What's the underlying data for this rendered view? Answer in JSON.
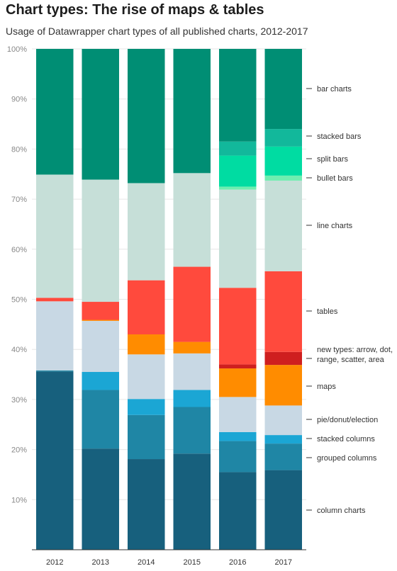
{
  "title": "Chart types: The rise of maps & tables",
  "subtitle": "Usage of Datawrapper chart types of all published charts, 2012-2017",
  "chart_data": {
    "type": "bar",
    "stacked": true,
    "percent": true,
    "ylim": [
      0,
      100
    ],
    "yticks": [
      "10%",
      "20%",
      "30%",
      "40%",
      "50%",
      "60%",
      "70%",
      "80%",
      "90%",
      "100%"
    ],
    "categories": [
      "2012",
      "2013",
      "2014",
      "2015",
      "2016",
      "2017"
    ],
    "series": [
      {
        "name": "column charts",
        "color": "#17607d",
        "values": [
          35.6,
          20.2,
          18.1,
          19.2,
          15.5,
          15.9
        ]
      },
      {
        "name": "grouped columns",
        "color": "#1f86a5",
        "values": [
          0.2,
          11.7,
          8.8,
          9.3,
          6.2,
          5.3
        ]
      },
      {
        "name": "stacked columns",
        "color": "#1ba6d4",
        "values": [
          0,
          3.6,
          3.2,
          3.4,
          1.8,
          1.7
        ]
      },
      {
        "name": "pie/donut/election",
        "color": "#c8d8e4",
        "values": [
          13.8,
          10.2,
          8.9,
          7.3,
          7.0,
          5.9
        ]
      },
      {
        "name": "maps",
        "color": "#ff8c00",
        "values": [
          0,
          0.2,
          4.0,
          2.3,
          5.7,
          8.1
        ]
      },
      {
        "name": "new types: arrow, dot, range, scatter, area",
        "color": "#cf1f1f",
        "values": [
          0,
          0,
          0,
          0,
          0.8,
          2.6
        ]
      },
      {
        "name": "tables",
        "color": "#ff4a3d",
        "values": [
          0.7,
          3.6,
          10.8,
          15.0,
          15.3,
          16.1
        ]
      },
      {
        "name": "line charts",
        "color": "#c6dfd8",
        "values": [
          24.6,
          24.4,
          19.4,
          18.7,
          19.6,
          18.1
        ]
      },
      {
        "name": "bullet bars",
        "color": "#6eeeb0",
        "values": [
          0,
          0,
          0,
          0,
          0.6,
          1.0
        ]
      },
      {
        "name": "split bars",
        "color": "#00dca2",
        "values": [
          0,
          0,
          0,
          0,
          6.2,
          5.8
        ]
      },
      {
        "name": "stacked bars",
        "color": "#12b89b",
        "values": [
          0,
          0,
          0,
          0,
          2.8,
          3.5
        ]
      },
      {
        "name": "bar charts",
        "color": "#008e74",
        "values": [
          25.1,
          26.1,
          26.8,
          24.8,
          18.5,
          16.0
        ]
      }
    ],
    "legend_placement": "right",
    "grid": true
  }
}
